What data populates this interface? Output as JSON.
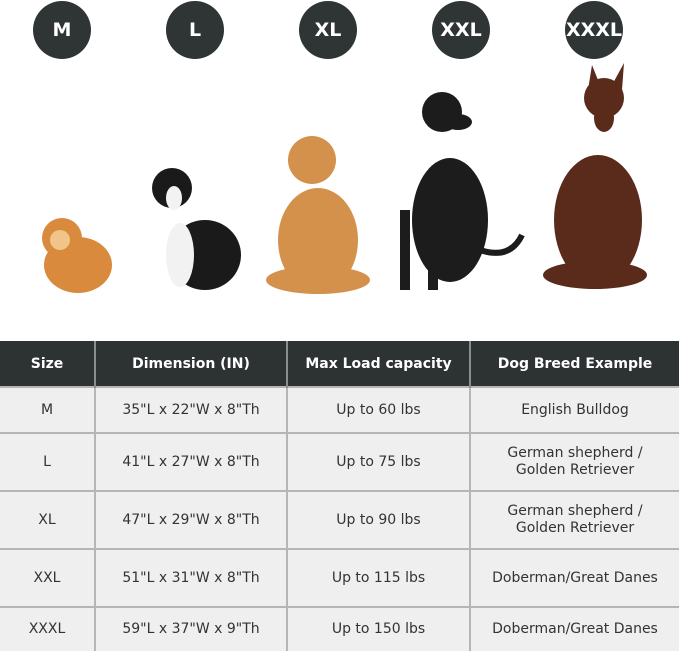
{
  "sizes": [
    "M",
    "L",
    "XL",
    "XXL",
    "XXXL"
  ],
  "table": {
    "headers": [
      "Size",
      "Dimension (IN)",
      "Max Load capacity",
      "Dog Breed Example"
    ],
    "rows": [
      [
        "M",
        "35\"L x 22\"W x 8\"Th",
        "Up to 60 lbs",
        "English Bulldog"
      ],
      [
        "L",
        "41\"L x 27\"W x 8\"Th",
        "Up to 75 lbs",
        "German shepherd /",
        "Golden Retriever"
      ],
      [
        "XL",
        "47\"L x 29\"W x 8\"Th",
        "Up to 90 lbs",
        "German shepherd /",
        "Golden Retriever"
      ],
      [
        "XXL",
        "51\"L x 31\"W x 8\"Th",
        "Up to 115 lbs",
        "Doberman/Great Danes"
      ],
      [
        "XXXL",
        "59\"L x 37\"W x 9\"Th",
        "Up to 150 lbs",
        "Doberman/Great Danes"
      ]
    ]
  },
  "dogs": [
    "pomeranian",
    "border-collie",
    "golden-retriever",
    "great-dane",
    "doberman"
  ],
  "colors": {
    "header": "#2d3233",
    "row": "#efefef"
  }
}
